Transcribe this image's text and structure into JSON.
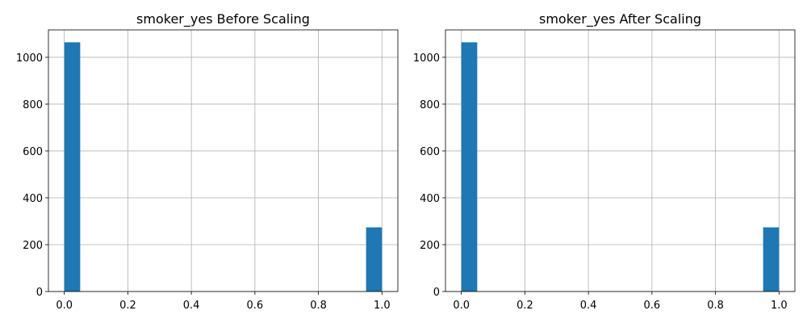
{
  "colors": {
    "bar": "#1f77b4",
    "grid": "#b0b0b0",
    "axis": "#000000"
  },
  "chart_data": [
    {
      "type": "bar",
      "title": "smoker_yes Before Scaling",
      "xlabel": "",
      "ylabel": "",
      "bins": 20,
      "x": [
        0.0,
        1.0
      ],
      "values": [
        1064,
        274
      ],
      "bin_width": 0.05,
      "xlim": [
        -0.05,
        1.05
      ],
      "ylim": [
        0,
        1117
      ],
      "xticks": [
        0.0,
        0.2,
        0.4,
        0.6,
        0.8,
        1.0
      ],
      "xtick_labels": [
        "0.0",
        "0.2",
        "0.4",
        "0.6",
        "0.8",
        "1.0"
      ],
      "yticks": [
        0,
        200,
        400,
        600,
        800,
        1000
      ],
      "ytick_labels": [
        "0",
        "200",
        "400",
        "600",
        "800",
        "1000"
      ],
      "grid": true
    },
    {
      "type": "bar",
      "title": "smoker_yes After Scaling",
      "xlabel": "",
      "ylabel": "",
      "bins": 20,
      "x": [
        0.0,
        1.0
      ],
      "values": [
        1064,
        274
      ],
      "bin_width": 0.05,
      "xlim": [
        -0.05,
        1.05
      ],
      "ylim": [
        0,
        1117
      ],
      "xticks": [
        0.0,
        0.2,
        0.4,
        0.6,
        0.8,
        1.0
      ],
      "xtick_labels": [
        "0.0",
        "0.2",
        "0.4",
        "0.6",
        "0.8",
        "1.0"
      ],
      "yticks": [
        0,
        200,
        400,
        600,
        800,
        1000
      ],
      "ytick_labels": [
        "0",
        "200",
        "400",
        "600",
        "800",
        "1000"
      ],
      "grid": true
    }
  ]
}
